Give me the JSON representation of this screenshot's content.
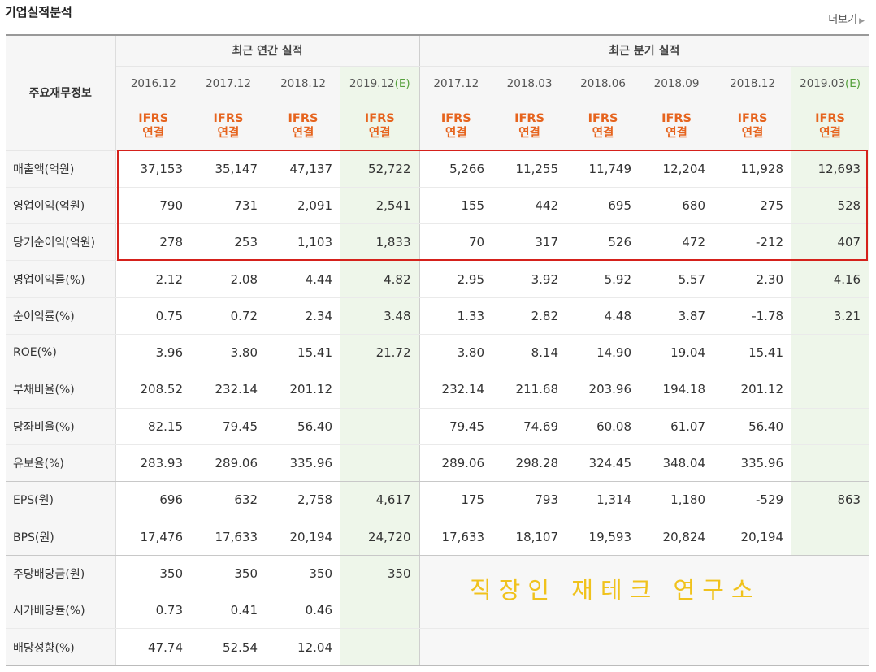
{
  "title": "기업실적분석",
  "more_label": "더보기",
  "header": {
    "label": "주요재무정보",
    "annual_group": "최근 연간 실적",
    "quarter_group": "최근 분기 실적",
    "periods": [
      {
        "date": "2016.12",
        "mark": ""
      },
      {
        "date": "2017.12",
        "mark": ""
      },
      {
        "date": "2018.12",
        "mark": ""
      },
      {
        "date": "2019.12",
        "mark": "(E)"
      },
      {
        "date": "2017.12",
        "mark": ""
      },
      {
        "date": "2018.03",
        "mark": ""
      },
      {
        "date": "2018.06",
        "mark": ""
      },
      {
        "date": "2018.09",
        "mark": ""
      },
      {
        "date": "2018.12",
        "mark": ""
      },
      {
        "date": "2019.03",
        "mark": "(E)"
      }
    ],
    "basis_line1": "IFRS",
    "basis_line2": "연결"
  },
  "rows": [
    {
      "label": "매출액(억원)",
      "values": [
        "37,153",
        "35,147",
        "47,137",
        "52,722",
        "5,266",
        "11,255",
        "11,749",
        "12,204",
        "11,928",
        "12,693"
      ]
    },
    {
      "label": "영업이익(억원)",
      "values": [
        "790",
        "731",
        "2,091",
        "2,541",
        "155",
        "442",
        "695",
        "680",
        "275",
        "528"
      ]
    },
    {
      "label": "당기순이익(억원)",
      "values": [
        "278",
        "253",
        "1,103",
        "1,833",
        "70",
        "317",
        "526",
        "472",
        "-212",
        "407"
      ]
    },
    {
      "label": "영업이익률(%)",
      "values": [
        "2.12",
        "2.08",
        "4.44",
        "4.82",
        "2.95",
        "3.92",
        "5.92",
        "5.57",
        "2.30",
        "4.16"
      ]
    },
    {
      "label": "순이익률(%)",
      "values": [
        "0.75",
        "0.72",
        "2.34",
        "3.48",
        "1.33",
        "2.82",
        "4.48",
        "3.87",
        "-1.78",
        "3.21"
      ]
    },
    {
      "label": "ROE(%)",
      "values": [
        "3.96",
        "3.80",
        "15.41",
        "21.72",
        "3.80",
        "8.14",
        "14.90",
        "19.04",
        "15.41",
        ""
      ]
    },
    {
      "label": "부채비율(%)",
      "values": [
        "208.52",
        "232.14",
        "201.12",
        "",
        "232.14",
        "211.68",
        "203.96",
        "194.18",
        "201.12",
        ""
      ]
    },
    {
      "label": "당좌비율(%)",
      "values": [
        "82.15",
        "79.45",
        "56.40",
        "",
        "79.45",
        "74.69",
        "60.08",
        "61.07",
        "56.40",
        ""
      ]
    },
    {
      "label": "유보율(%)",
      "values": [
        "283.93",
        "289.06",
        "335.96",
        "",
        "289.06",
        "298.28",
        "324.45",
        "348.04",
        "335.96",
        ""
      ]
    },
    {
      "label": "EPS(원)",
      "values": [
        "696",
        "632",
        "2,758",
        "4,617",
        "175",
        "793",
        "1,314",
        "1,180",
        "-529",
        "863"
      ]
    },
    {
      "label": "BPS(원)",
      "values": [
        "17,476",
        "17,633",
        "20,194",
        "24,720",
        "17,633",
        "18,107",
        "19,593",
        "20,824",
        "20,194",
        ""
      ]
    },
    {
      "label": "주당배당금(원)",
      "values": [
        "350",
        "350",
        "350",
        "350",
        "",
        "",
        "",
        "",
        "",
        ""
      ]
    },
    {
      "label": "시가배당률(%)",
      "values": [
        "0.73",
        "0.41",
        "0.46",
        "",
        "",
        "",
        "",
        "",
        "",
        ""
      ]
    },
    {
      "label": "배당성향(%)",
      "values": [
        "47.74",
        "52.54",
        "12.04",
        "",
        "",
        "",
        "",
        "",
        "",
        ""
      ]
    }
  ],
  "watermark": "직장인 재테크 연구소",
  "colors": {
    "highlight_box": "#d5211b",
    "negative": "#e0201e",
    "ifrs": "#e6641e",
    "estimate_bg": "#eef6ea",
    "watermark": "#f0c21c"
  }
}
